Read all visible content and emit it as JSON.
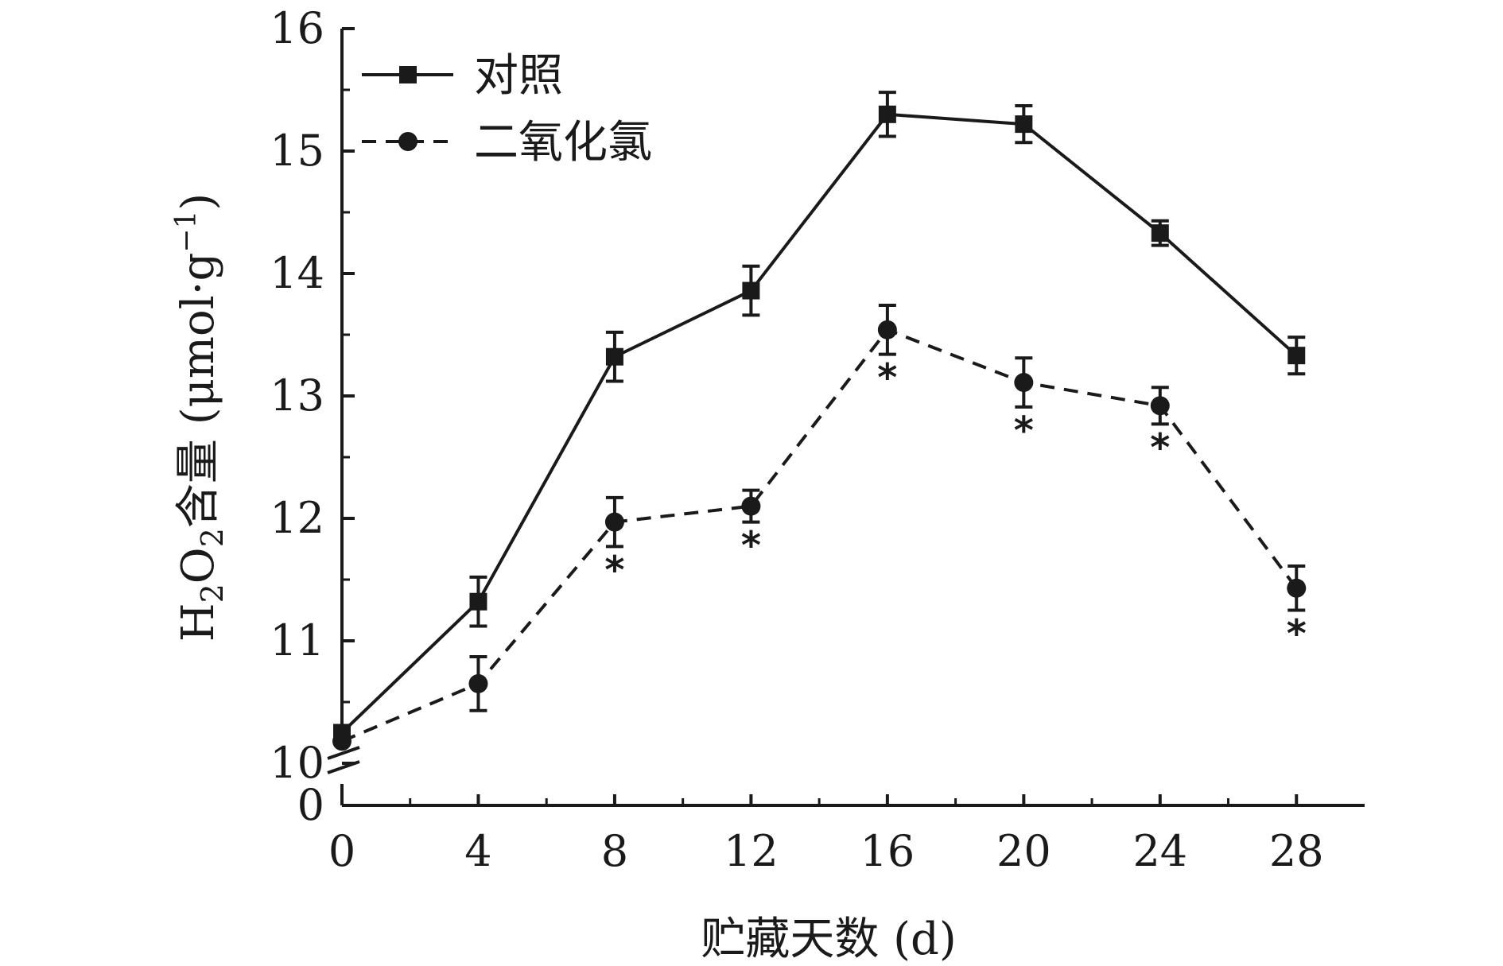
{
  "chart_data": {
    "type": "line",
    "xlabel": "贮藏天数 (d)",
    "ylabel_prefix": "H",
    "ylabel_sub1": "2",
    "ylabel_mid": "O",
    "ylabel_sub2": "2",
    "ylabel_suffix": "含量 (μmol·g",
    "ylabel_sup": "−1",
    "ylabel_close": ")",
    "x": [
      0,
      4,
      8,
      12,
      16,
      20,
      24,
      28
    ],
    "xlim": [
      0,
      30
    ],
    "ylim": [
      10,
      16
    ],
    "y_break": true,
    "y_ticks": [
      10,
      11,
      12,
      13,
      14,
      15,
      16
    ],
    "y_tick_labels": [
      "10",
      "11",
      "12",
      "13",
      "14",
      "15",
      "16"
    ],
    "y_zero_label": "0",
    "x_ticks": [
      0,
      4,
      8,
      12,
      16,
      20,
      24,
      28
    ],
    "x_tick_labels": [
      "0",
      "4",
      "8",
      "12",
      "16",
      "20",
      "24",
      "28"
    ],
    "legend_position": "top-left",
    "grid": false,
    "series": [
      {
        "name": "对照",
        "marker": "square",
        "line_style": "solid",
        "color": "#1a1a1a",
        "values": [
          10.25,
          11.32,
          13.32,
          13.86,
          15.3,
          15.22,
          14.33,
          13.33
        ],
        "errors": [
          0.05,
          0.2,
          0.2,
          0.2,
          0.18,
          0.15,
          0.1,
          0.15
        ]
      },
      {
        "name": "二氧化氯",
        "marker": "circle",
        "line_style": "dashed",
        "color": "#1a1a1a",
        "values": [
          10.18,
          10.65,
          11.97,
          12.1,
          13.54,
          13.11,
          12.92,
          11.43
        ],
        "errors": [
          0.05,
          0.22,
          0.2,
          0.13,
          0.2,
          0.2,
          0.15,
          0.18
        ],
        "annotations": [
          "",
          "",
          "*",
          "*",
          "*",
          "*",
          "*",
          "*"
        ]
      }
    ]
  }
}
